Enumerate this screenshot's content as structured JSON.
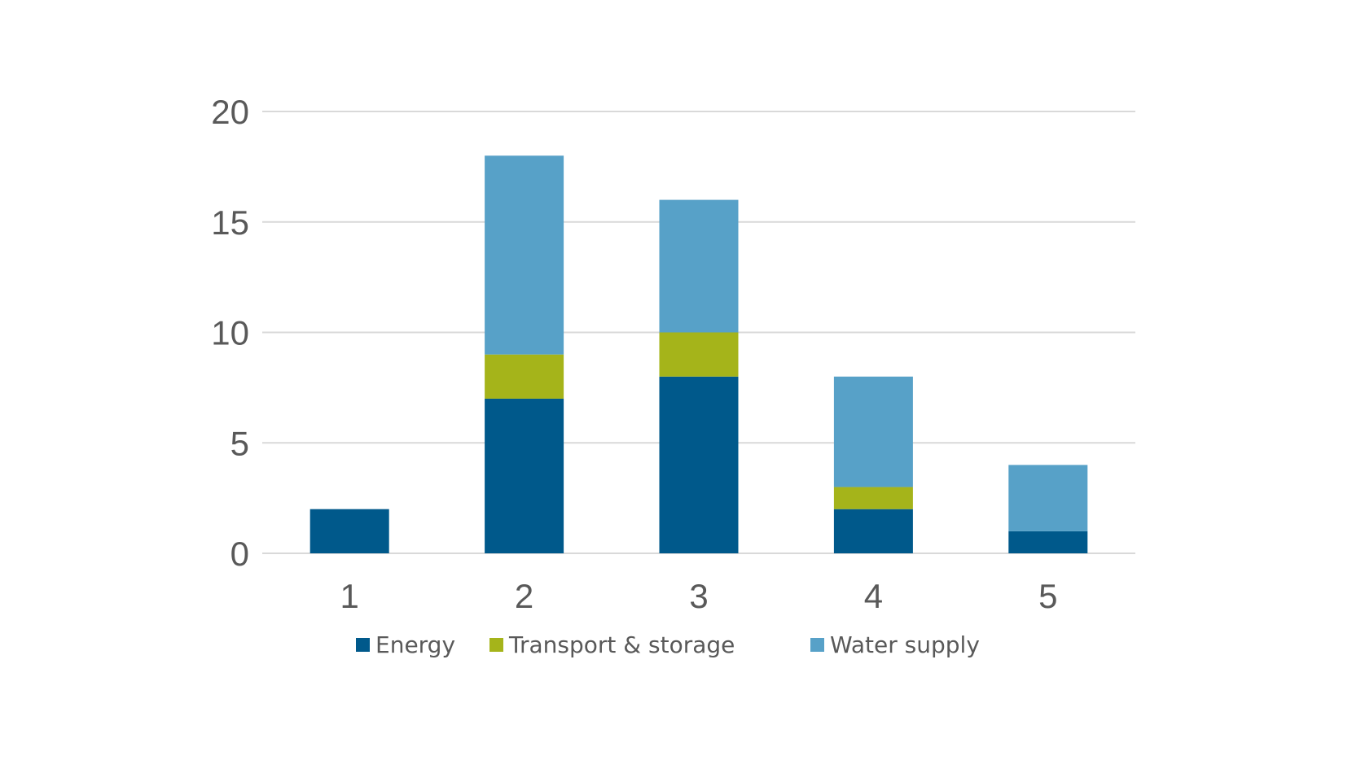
{
  "chart_data": {
    "type": "bar",
    "stacked": true,
    "categories": [
      "1",
      "2",
      "3",
      "4",
      "5"
    ],
    "series": [
      {
        "name": "Energy",
        "color": "#00598b",
        "values": [
          2,
          7,
          8,
          2,
          1
        ]
      },
      {
        "name": "Transport & storage",
        "color": "#a5b41a",
        "values": [
          0,
          2,
          2,
          1,
          0
        ]
      },
      {
        "name": "Water supply",
        "color": "#57a1c8",
        "values": [
          0,
          9,
          6,
          5,
          3
        ]
      }
    ],
    "yticks": [
      "0",
      "5",
      "10",
      "15",
      "20"
    ],
    "ylim": [
      0,
      20
    ],
    "grid": true,
    "legend_position": "bottom"
  }
}
